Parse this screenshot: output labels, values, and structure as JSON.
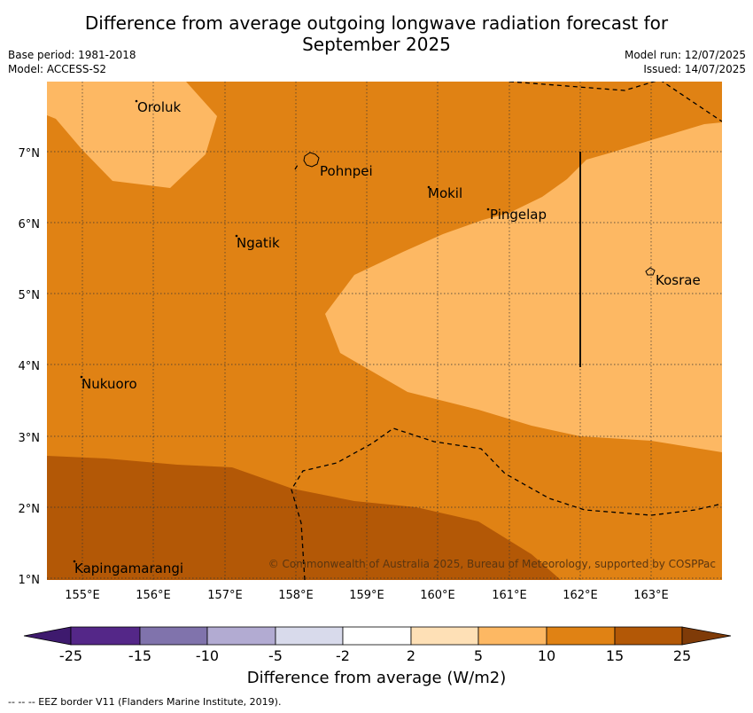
{
  "title_line1": "Difference from average outgoing longwave radiation forecast for",
  "title_line2": "September 2025",
  "base_period": "Base period: 1981-2018",
  "model": "Model: ACCESS-S2",
  "model_run": "Model run: 12/07/2025",
  "issued": "Issued: 14/07/2025",
  "copyright": "© Commonwealth of Australia 2025, Bureau of Meteorology, supported by COSPPac",
  "lat_ticks": [
    "7°N",
    "6°N",
    "5°N",
    "4°N",
    "3°N",
    "2°N",
    "1°N"
  ],
  "lon_ticks": [
    "155°E",
    "156°E",
    "157°E",
    "158°E",
    "159°E",
    "160°E",
    "161°E",
    "162°E",
    "163°E"
  ],
  "places": [
    "Oroluk",
    "Pohnpei",
    "Mokil",
    "Pingelap",
    "Ngatik",
    "Kosrae",
    "Nukuoro",
    "Kapingamarangi"
  ],
  "colorbar": {
    "title": "Difference from average (W/m2)",
    "ticks": [
      "-25",
      "-15",
      "-10",
      "-5",
      "-2",
      "2",
      "5",
      "10",
      "15",
      "25"
    ],
    "colors": [
      "#3e1a6e",
      "#542788",
      "#8073ac",
      "#b2abd2",
      "#d8daeb",
      "#ffffff",
      "#fee0b6",
      "#fdb863",
      "#e08214",
      "#b35806",
      "#7f3b08"
    ]
  },
  "footnote": "-- -- -- EEZ border V11 (Flanders Marine Institute, 2019)."
}
